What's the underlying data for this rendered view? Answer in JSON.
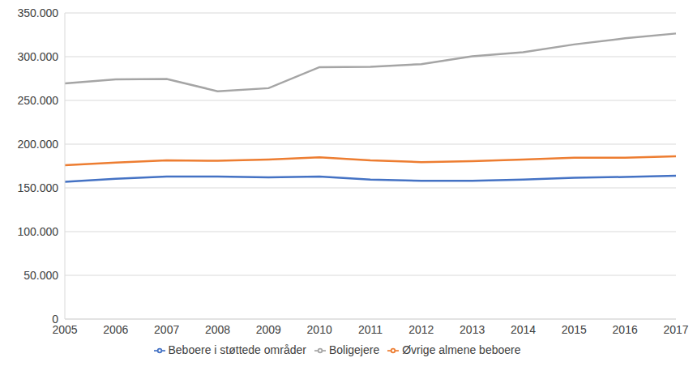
{
  "chart_data": {
    "type": "line",
    "categories": [
      "2005",
      "2006",
      "2007",
      "2008",
      "2009",
      "2010",
      "2011",
      "2012",
      "2013",
      "2014",
      "2015",
      "2016",
      "2017"
    ],
    "series": [
      {
        "name": "Beboere i støttede områder",
        "color": "#4472c4",
        "values": [
          157000,
          160500,
          163000,
          163000,
          162000,
          163000,
          159500,
          158000,
          158000,
          159500,
          161500,
          162500,
          164000
        ]
      },
      {
        "name": "Øvrige almene beboere",
        "color": "#ed7d31",
        "values": [
          176000,
          179000,
          181500,
          181000,
          182500,
          185000,
          181500,
          179500,
          180500,
          182500,
          184500,
          184500,
          186000
        ]
      },
      {
        "name": "Boligejere",
        "color": "#a5a5a5",
        "values": [
          269500,
          274000,
          274500,
          260500,
          264000,
          288000,
          288500,
          291500,
          300500,
          305000,
          314000,
          321000,
          326500
        ]
      }
    ],
    "ylim": [
      0,
      350000
    ],
    "yticks": [
      0,
      {
        "value": 50000,
        "label": "50.000"
      },
      {
        "value": 100000,
        "label": "100.000"
      },
      {
        "value": 150000,
        "label": "150.000"
      },
      {
        "value": 200000,
        "label": "200.000"
      },
      {
        "value": 250000,
        "label": "250.000"
      },
      {
        "value": 300000,
        "label": "300.000"
      },
      {
        "value": 350000,
        "label": "350.000"
      }
    ],
    "grid": true,
    "legend": "bottom"
  }
}
